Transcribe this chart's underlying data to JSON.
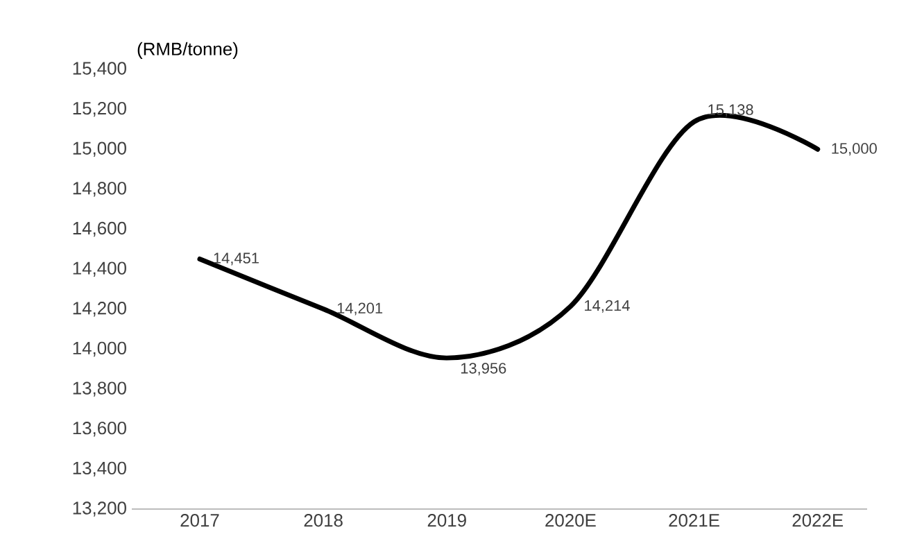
{
  "chart_data": {
    "type": "line",
    "ylabel": "(RMB/tonne)",
    "categories": [
      "2017",
      "2018",
      "2019",
      "2020E",
      "2021E",
      "2022E"
    ],
    "values": [
      14451,
      14201,
      13956,
      14214,
      15138,
      15000
    ],
    "value_labels": [
      "14,451",
      "14,201",
      "13,956",
      "14,214",
      "15,138",
      "15,000"
    ],
    "color": "#000000",
    "ylim": [
      13200,
      15400
    ],
    "yticks": [
      {
        "value": 13200,
        "label": "13,200"
      },
      {
        "value": 13400,
        "label": "13,400"
      },
      {
        "value": 13600,
        "label": "13,600"
      },
      {
        "value": 13800,
        "label": "13,800"
      },
      {
        "value": 14000,
        "label": "14,000"
      },
      {
        "value": 14200,
        "label": "14,200"
      },
      {
        "value": 14400,
        "label": "14,400"
      },
      {
        "value": 14600,
        "label": "14,600"
      },
      {
        "value": 14800,
        "label": "14,800"
      },
      {
        "value": 15000,
        "label": "15,000"
      },
      {
        "value": 15200,
        "label": "15,200"
      },
      {
        "value": 15400,
        "label": "15,400"
      }
    ],
    "grid": false,
    "marker": "none",
    "line_style": "solid"
  }
}
